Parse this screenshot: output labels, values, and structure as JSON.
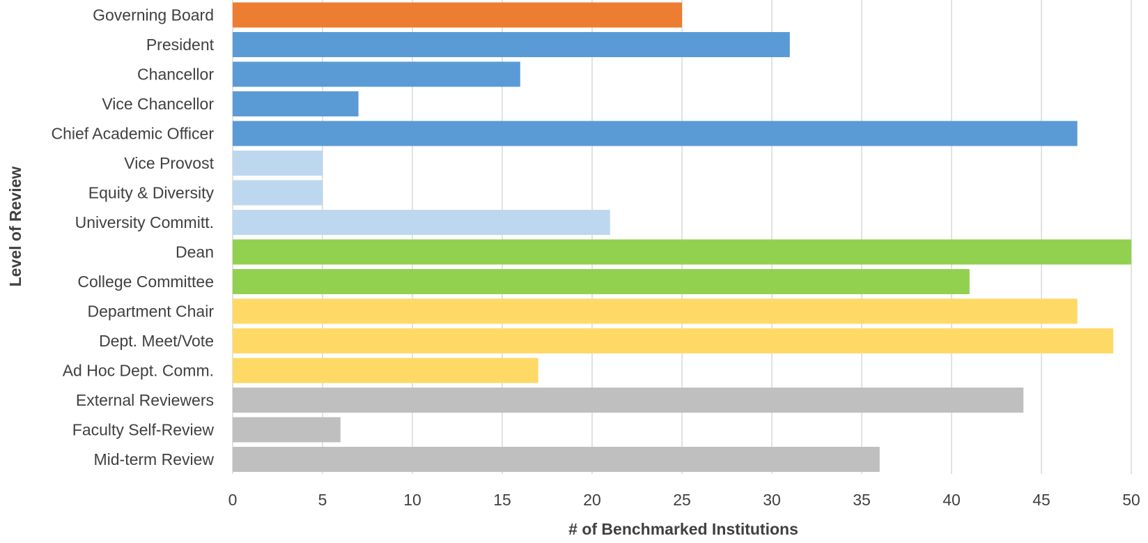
{
  "chart_data": {
    "type": "bar",
    "orientation": "horizontal",
    "title": "",
    "xlabel": "# of Benchmarked Institutions",
    "ylabel": "Level of Review",
    "xlim": [
      0,
      50
    ],
    "xticks": [
      0,
      5,
      10,
      15,
      20,
      25,
      30,
      35,
      40,
      45,
      50
    ],
    "grid": "vertical",
    "legend": "none",
    "categories": [
      "Governing Board",
      "President",
      "Chancellor",
      "Vice Chancellor",
      "Chief Academic Officer",
      "Vice Provost",
      "Equity & Diversity",
      "University Committ.",
      "Dean",
      "College Committee",
      "Department Chair",
      "Dept. Meet/Vote",
      "Ad Hoc Dept. Comm.",
      "External Reviewers",
      "Faculty Self-Review",
      "Mid-term Review"
    ],
    "values": [
      25,
      31,
      16,
      7,
      47,
      5,
      5,
      21,
      50,
      41,
      47,
      49,
      17,
      44,
      6,
      36
    ],
    "colors": [
      "#ED7D31",
      "#5B9BD5",
      "#5B9BD5",
      "#5B9BD5",
      "#5B9BD5",
      "#BDD7EE",
      "#BDD7EE",
      "#BDD7EE",
      "#92D050",
      "#92D050",
      "#FFD966",
      "#FFD966",
      "#FFD966",
      "#BFBFBF",
      "#BFBFBF",
      "#BFBFBF"
    ]
  }
}
